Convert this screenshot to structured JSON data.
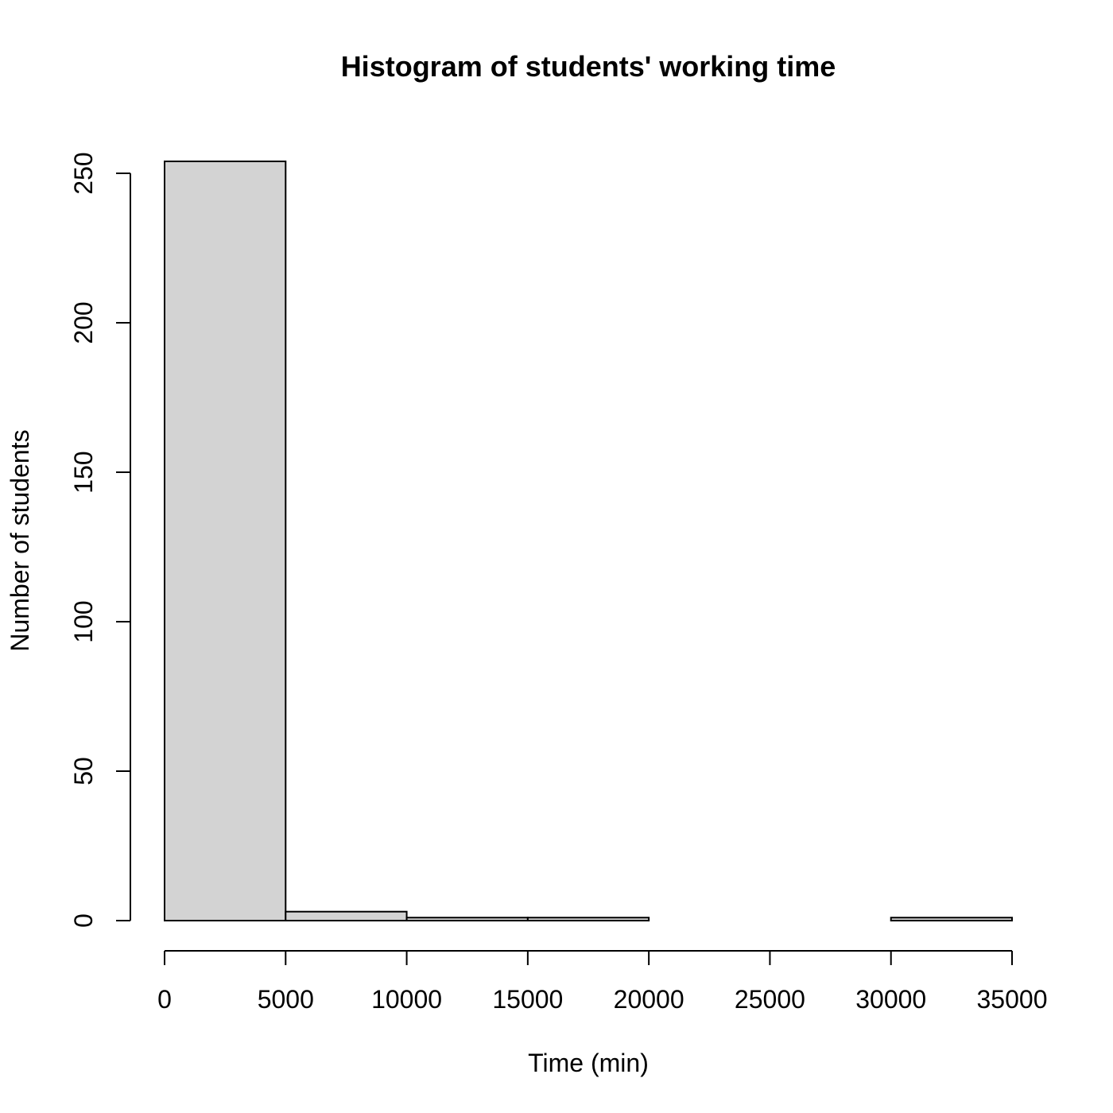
{
  "chart_data": {
    "type": "bar",
    "title": "Histogram of students' working time",
    "xlabel": "Time (min)",
    "ylabel": "Number of students",
    "bins": [
      {
        "start": 0,
        "end": 5000,
        "count": 254
      },
      {
        "start": 5000,
        "end": 10000,
        "count": 3
      },
      {
        "start": 10000,
        "end": 15000,
        "count": 1
      },
      {
        "start": 15000,
        "end": 20000,
        "count": 1
      },
      {
        "start": 20000,
        "end": 25000,
        "count": 0
      },
      {
        "start": 25000,
        "end": 30000,
        "count": 0
      },
      {
        "start": 30000,
        "end": 35000,
        "count": 1
      }
    ],
    "xlim": [
      0,
      35000
    ],
    "ylim": [
      0,
      250
    ],
    "x_ticks": [
      0,
      5000,
      10000,
      15000,
      20000,
      25000,
      30000,
      35000
    ],
    "y_ticks": [
      0,
      50,
      100,
      150,
      200,
      250
    ],
    "grid": false,
    "bar_color": "#d3d3d3",
    "edge_color": "#000000"
  }
}
